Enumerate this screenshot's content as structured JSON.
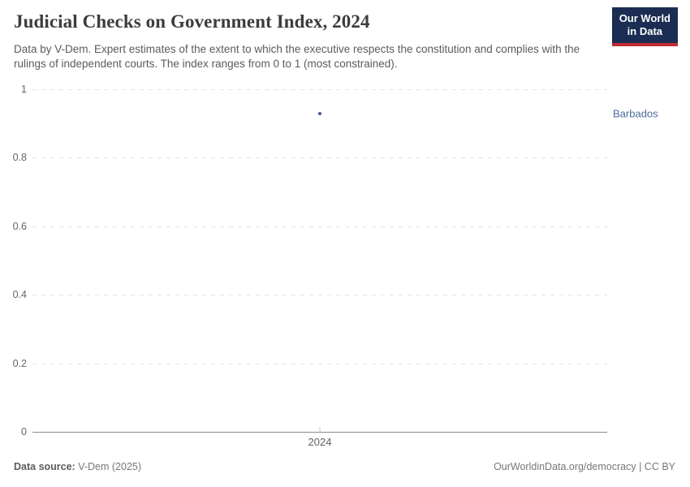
{
  "header": {
    "title": "Judicial Checks on Government Index, 2024",
    "subtitle": "Data by V-Dem. Expert estimates of the extent to which the executive respects the constitution and complies with the rulings of independent courts. The index ranges from 0 to 1 (most constrained).",
    "logo": {
      "line1": "Our World",
      "line2": "in Data",
      "bg_color": "#1b2d53",
      "stripe_color": "#c02b31"
    }
  },
  "chart_data": {
    "type": "scatter",
    "title": "Judicial Checks on Government Index, 2024",
    "xlabel": "",
    "ylabel": "",
    "ylim": [
      0,
      1
    ],
    "yticks": [
      {
        "value": 0,
        "label": "0"
      },
      {
        "value": 0.2,
        "label": "0.2"
      },
      {
        "value": 0.4,
        "label": "0.4"
      },
      {
        "value": 0.6,
        "label": "0.6"
      },
      {
        "value": 0.8,
        "label": "0.8"
      },
      {
        "value": 1,
        "label": "1"
      }
    ],
    "xticks": [
      "2024"
    ],
    "grid": "horizontal-dashed",
    "legend_position": "entity-label-right-of-point",
    "series": [
      {
        "name": "Barbados",
        "color": "#3d5a91",
        "label_color": "#4c6a9c",
        "points": [
          {
            "x": "2024",
            "y": 0.93
          }
        ]
      }
    ]
  },
  "footer": {
    "source_label": "Data source:",
    "source_value": "V-Dem (2025)",
    "attribution": "OurWorldinData.org/democracy | CC BY"
  }
}
